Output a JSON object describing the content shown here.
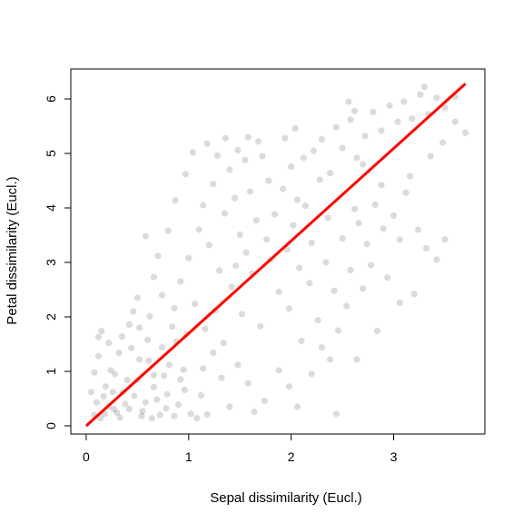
{
  "chart_data": {
    "type": "scatter",
    "title": "",
    "xlabel": "Sepal dissimilarity (Eucl.)",
    "ylabel": "Petal dissimilarity (Eucl.)",
    "xlim": [
      -0.15,
      3.89
    ],
    "ylim": [
      -0.15,
      6.55
    ],
    "xticks": [
      "0",
      "1",
      "2",
      "3"
    ],
    "yticks": [
      "0",
      "1",
      "2",
      "3",
      "4",
      "5",
      "6"
    ],
    "grid": false,
    "legend": "none",
    "point_color": "#000000",
    "point_alpha": 0.14,
    "fit_line_color": "#ff0000",
    "series": [
      {
        "type": "scatter",
        "points": [
          [
            0.14,
            0.14
          ],
          [
            0.22,
            0.36
          ],
          [
            0.17,
            0.54
          ],
          [
            0.3,
            0.24
          ],
          [
            0.36,
            0.62
          ],
          [
            0.42,
            0.31
          ],
          [
            0.5,
            0.84
          ],
          [
            0.24,
            1.02
          ],
          [
            0.58,
            0.43
          ],
          [
            0.66,
            0.71
          ],
          [
            0.72,
            0.2
          ],
          [
            0.81,
            1.12
          ],
          [
            0.9,
            0.39
          ],
          [
            0.96,
            0.66
          ],
          [
            0.12,
            1.28
          ],
          [
            0.28,
            0.95
          ],
          [
            0.44,
            1.43
          ],
          [
            0.61,
            1.2
          ],
          [
            0.76,
            0.92
          ],
          [
            0.88,
            1.55
          ],
          [
            0.1,
            0.43
          ],
          [
            0.19,
            0.72
          ],
          [
            0.33,
            0.15
          ],
          [
            0.47,
            0.55
          ],
          [
            0.55,
            0.27
          ],
          [
            0.69,
            0.48
          ],
          [
            0.79,
            0.58
          ],
          [
            0.35,
            1.64
          ],
          [
            0.15,
            1.74
          ],
          [
            0.52,
            1.8
          ],
          [
            0.64,
            0.14
          ],
          [
            0.86,
            0.18
          ],
          [
            1.02,
            0.22
          ],
          [
            1.12,
            0.56
          ],
          [
            1.18,
            0.21
          ],
          [
            0.27,
            0.31
          ],
          [
            0.4,
            0.84
          ],
          [
            0.08,
            0.98
          ],
          [
            0.12,
            1.63
          ],
          [
            0.95,
            1.03
          ],
          [
            0.62,
            2.01
          ],
          [
            0.74,
            2.4
          ],
          [
            0.84,
            1.82
          ],
          [
            0.92,
            2.65
          ],
          [
            1.0,
            3.08
          ],
          [
            1.06,
            2.24
          ],
          [
            1.1,
            3.6
          ],
          [
            1.14,
            4.05
          ],
          [
            1.2,
            3.32
          ],
          [
            1.24,
            4.44
          ],
          [
            1.3,
            2.85
          ],
          [
            1.35,
            3.9
          ],
          [
            1.4,
            4.7
          ],
          [
            1.45,
            4.18
          ],
          [
            1.5,
            3.51
          ],
          [
            1.55,
            4.88
          ],
          [
            1.6,
            4.3
          ],
          [
            1.66,
            3.77
          ],
          [
            1.72,
            4.95
          ],
          [
            1.78,
            4.5
          ],
          [
            0.7,
            3.12
          ],
          [
            0.8,
            3.58
          ],
          [
            0.87,
            4.14
          ],
          [
            0.97,
            4.62
          ],
          [
            1.04,
            5.02
          ],
          [
            1.18,
            5.18
          ],
          [
            1.28,
            4.96
          ],
          [
            1.36,
            5.28
          ],
          [
            0.66,
            2.73
          ],
          [
            0.58,
            3.48
          ],
          [
            0.5,
            2.35
          ],
          [
            0.46,
            2.1
          ],
          [
            1.16,
            1.78
          ],
          [
            1.26,
            2.12
          ],
          [
            1.34,
            1.52
          ],
          [
            1.42,
            2.55
          ],
          [
            1.52,
            2.05
          ],
          [
            1.62,
            2.8
          ],
          [
            1.7,
            1.83
          ],
          [
            1.8,
            3.05
          ],
          [
            1.88,
            2.46
          ],
          [
            1.96,
            3.24
          ],
          [
            2.02,
            3.68
          ],
          [
            2.08,
            2.9
          ],
          [
            2.14,
            4.04
          ],
          [
            2.2,
            3.36
          ],
          [
            2.28,
            4.52
          ],
          [
            2.36,
            3.82
          ],
          [
            1.84,
            3.88
          ],
          [
            1.92,
            4.35
          ],
          [
            2.0,
            4.76
          ],
          [
            2.06,
            4.15
          ],
          [
            2.12,
            4.92
          ],
          [
            2.22,
            5.05
          ],
          [
            2.3,
            5.26
          ],
          [
            2.38,
            4.64
          ],
          [
            2.44,
            5.48
          ],
          [
            2.5,
            5.1
          ],
          [
            2.58,
            5.62
          ],
          [
            2.64,
            4.92
          ],
          [
            2.72,
            5.32
          ],
          [
            2.8,
            5.76
          ],
          [
            2.88,
            5.42
          ],
          [
            2.96,
            5.88
          ],
          [
            3.04,
            5.58
          ],
          [
            3.1,
            5.95
          ],
          [
            3.18,
            5.64
          ],
          [
            3.26,
            6.08
          ],
          [
            3.34,
            5.72
          ],
          [
            3.42,
            6.02
          ],
          [
            3.5,
            5.84
          ],
          [
            3.6,
            5.58
          ],
          [
            3.7,
            5.38
          ],
          [
            3.3,
            6.22
          ],
          [
            2.56,
            5.95
          ],
          [
            2.62,
            5.78
          ],
          [
            1.98,
            2.15
          ],
          [
            2.18,
            2.62
          ],
          [
            2.26,
            1.94
          ],
          [
            2.34,
            3.0
          ],
          [
            2.42,
            2.48
          ],
          [
            2.5,
            3.44
          ],
          [
            2.58,
            2.86
          ],
          [
            2.66,
            3.72
          ],
          [
            2.74,
            3.34
          ],
          [
            2.82,
            4.06
          ],
          [
            2.9,
            3.62
          ],
          [
            3.0,
            3.86
          ],
          [
            3.06,
            3.42
          ],
          [
            3.16,
            4.58
          ],
          [
            3.24,
            3.6
          ],
          [
            3.32,
            3.26
          ],
          [
            3.42,
            3.05
          ],
          [
            3.06,
            2.26
          ],
          [
            2.94,
            2.72
          ],
          [
            2.3,
            1.44
          ],
          [
            2.46,
            1.75
          ],
          [
            2.2,
            0.95
          ],
          [
            2.38,
            1.22
          ],
          [
            2.44,
            0.22
          ],
          [
            2.06,
            0.35
          ],
          [
            1.98,
            0.72
          ],
          [
            1.88,
            1.02
          ],
          [
            1.74,
            0.46
          ],
          [
            1.64,
            0.26
          ],
          [
            1.58,
            0.78
          ],
          [
            1.48,
            1.12
          ],
          [
            1.4,
            0.35
          ],
          [
            1.32,
            0.88
          ],
          [
            1.24,
            1.34
          ],
          [
            1.14,
            1.05
          ],
          [
            1.08,
            0.14
          ],
          [
            2.1,
            1.56
          ],
          [
            2.54,
            2.2
          ],
          [
            2.7,
            2.52
          ],
          [
            3.2,
            2.42
          ],
          [
            2.78,
            2.95
          ],
          [
            2.88,
            4.42
          ],
          [
            2.7,
            4.8
          ],
          [
            2.62,
            3.98
          ],
          [
            1.94,
            5.28
          ],
          [
            2.04,
            5.46
          ],
          [
            1.68,
            5.22
          ],
          [
            1.58,
            5.3
          ],
          [
            1.48,
            5.06
          ],
          [
            1.46,
            2.94
          ],
          [
            1.56,
            3.18
          ],
          [
            1.76,
            3.42
          ],
          [
            0.98,
            1.68
          ],
          [
            0.86,
            2.16
          ],
          [
            0.74,
            1.44
          ],
          [
            0.6,
            1.58
          ],
          [
            0.52,
            1.22
          ],
          [
            0.42,
            1.86
          ],
          [
            0.32,
            1.34
          ],
          [
            0.22,
            1.52
          ],
          [
            0.18,
            0.22
          ],
          [
            0.26,
            0.62
          ],
          [
            0.38,
            0.4
          ],
          [
            0.54,
            0.18
          ],
          [
            0.66,
            0.93
          ],
          [
            0.78,
            0.32
          ],
          [
            0.92,
            0.85
          ],
          [
            0.08,
            0.2
          ],
          [
            0.05,
            0.62
          ],
          [
            3.5,
            3.42
          ],
          [
            3.36,
            4.95
          ],
          [
            3.48,
            5.2
          ],
          [
            3.6,
            6.04
          ],
          [
            3.12,
            4.28
          ],
          [
            2.84,
            1.74
          ],
          [
            2.64,
            1.22
          ]
        ]
      },
      {
        "type": "line",
        "name": "",
        "points": [
          [
            0.0,
            0.0
          ],
          [
            3.7,
            6.28
          ]
        ]
      }
    ]
  }
}
